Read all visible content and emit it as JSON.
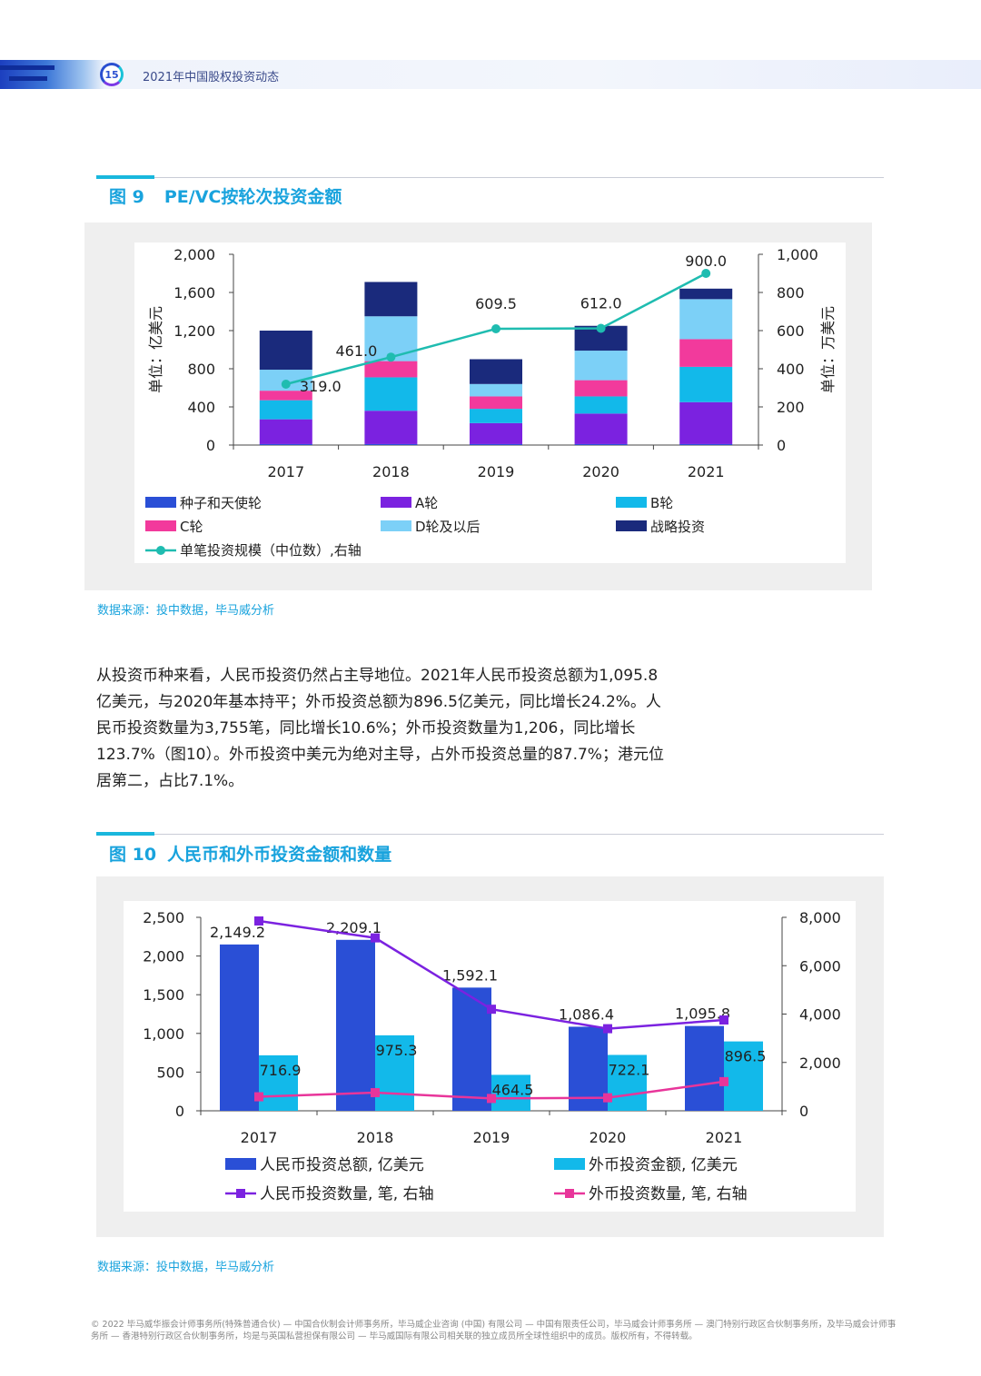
{
  "header": {
    "page_number": "15",
    "doc_title": "2021年中国股权投资动态"
  },
  "figure9": {
    "label": "图 9",
    "title": "PE/VC按轮次投资金额",
    "source": "数据来源：投中数据，毕马威分析"
  },
  "figure10": {
    "label": "图 10",
    "title": "人民币和外币投资金额和数量",
    "source": "数据来源：投中数据，毕马威分析"
  },
  "body_text": "从投资币种来看，人民币投资仍然占主导地位。2021年人民币投资总额为1,095.8亿美元，与2020年基本持平；外币投资总额为896.5亿美元，同比增长24.2%。人民币投资数量为3,755笔，同比增长10.6%；外币投资数量为1,206，同比增长123.7%（图10）。外币投资中美元为绝对主导，占外币投资总量的87.7%；港元位居第二，占比7.1%。",
  "footer": "© 2022 毕马威华振会计师事务所(特殊普通合伙) — 中国合伙制会计师事务所，毕马威企业咨询 (中国) 有限公司 — 中国有限责任公司，毕马威会计师事务所 — 澳门特别行政区合伙制事务所，及毕马威会计师事务所 — 香港特别行政区合伙制事务所，均是与英国私营担保有限公司 — 毕马威国际有限公司相关联的独立成员所全球性组织中的成员。版权所有，不得转载。",
  "chart_data": [
    {
      "type": "bar",
      "stacked": true,
      "categories": [
        "2017",
        "2018",
        "2019",
        "2020",
        "2021"
      ],
      "ylabel": "单位：亿美元",
      "ylim": [
        0,
        2000
      ],
      "yticks": [
        "0",
        "400",
        "800",
        "1,200",
        "1,600",
        "2,000"
      ],
      "y2label": "单位：万美元",
      "y2lim": [
        0,
        1000
      ],
      "y2ticks": [
        "0",
        "200",
        "400",
        "600",
        "800",
        "1,000"
      ],
      "legend_position": "bottom",
      "series": [
        {
          "name": "种子和天使轮",
          "color": "#2a4fd6",
          "values": [
            10,
            10,
            10,
            10,
            10
          ]
        },
        {
          "name": "A轮",
          "color": "#7b22e0",
          "values": [
            260,
            350,
            220,
            320,
            440
          ]
        },
        {
          "name": "B轮",
          "color": "#12b9ea",
          "values": [
            200,
            350,
            150,
            180,
            370
          ]
        },
        {
          "name": "C轮",
          "color": "#f23a9c",
          "values": [
            100,
            170,
            130,
            170,
            290
          ]
        },
        {
          "name": "D轮及以后",
          "color": "#7cd0f7",
          "values": [
            220,
            470,
            130,
            310,
            420
          ]
        },
        {
          "name": "战略投资",
          "color": "#1a2a7c",
          "values": [
            410,
            360,
            260,
            260,
            110
          ]
        }
      ],
      "line_series": {
        "name": "单笔投资规模（中位数）,右轴",
        "color": "#1fbcb0",
        "axis": "right",
        "values": [
          319.0,
          461.0,
          609.5,
          612.0,
          900.0
        ],
        "labels": [
          "319.0",
          "461.0",
          "609.5",
          "612.0",
          "900.0"
        ]
      }
    },
    {
      "type": "bar",
      "categories": [
        "2017",
        "2018",
        "2019",
        "2020",
        "2021"
      ],
      "ylim": [
        0,
        2500
      ],
      "yticks": [
        "0",
        "500",
        "1,000",
        "1,500",
        "2,000",
        "2,500"
      ],
      "y2lim": [
        0,
        8000
      ],
      "y2ticks": [
        "0",
        "2,000",
        "4,000",
        "6,000",
        "8,000"
      ],
      "legend_position": "bottom",
      "series": [
        {
          "name": "人民币投资总额, 亿美元",
          "color": "#2a4fd6",
          "values": [
            2149.2,
            2209.1,
            1592.1,
            1086.4,
            1095.8
          ],
          "labels": [
            "2,149.2",
            "2,209.1",
            "1,592.1",
            "1,086.4",
            "1,095.8"
          ]
        },
        {
          "name": "外币投资金额, 亿美元",
          "color": "#12b9ea",
          "values": [
            716.9,
            975.3,
            464.5,
            722.1,
            896.5
          ],
          "labels": [
            "716.9",
            "975.3",
            "464.5",
            "722.1",
            "896.5"
          ]
        }
      ],
      "line_series": [
        {
          "name": "人民币投资数量, 笔, 右轴",
          "color": "#7b22e0",
          "axis": "right",
          "values": [
            7850,
            7150,
            4200,
            3395,
            3755
          ]
        },
        {
          "name": "外币投资数量, 笔, 右轴",
          "color": "#e8359a",
          "axis": "right",
          "values": [
            580,
            750,
            510,
            539,
            1206
          ]
        }
      ]
    }
  ]
}
